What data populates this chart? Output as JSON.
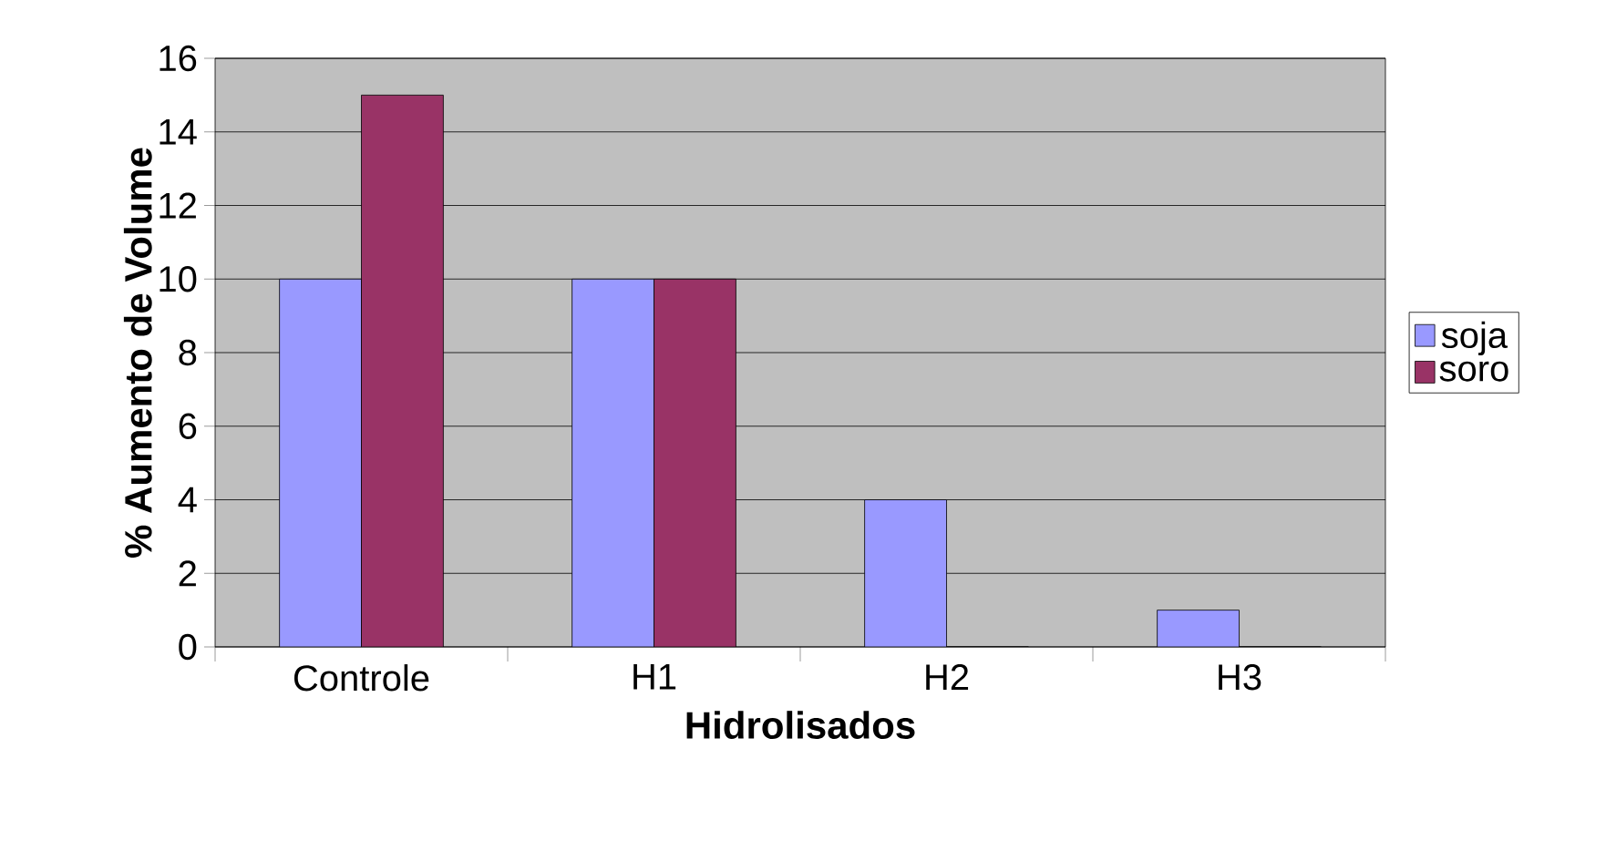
{
  "chart_data": {
    "type": "bar",
    "xlabel": "Hidrolisados",
    "ylabel": "% Aumento de Volume",
    "categories": [
      "Controle",
      "H1",
      "H2",
      "H3"
    ],
    "series": [
      {
        "name": "soja",
        "color": "#9999ff",
        "values": [
          10,
          10,
          4,
          1
        ]
      },
      {
        "name": "soro",
        "color": "#993366",
        "values": [
          15,
          10,
          0,
          0
        ]
      }
    ],
    "ylim": [
      0,
      16
    ],
    "yticks": [
      0,
      2,
      4,
      6,
      8,
      10,
      12,
      14,
      16
    ],
    "grid": "y",
    "legend": "right"
  }
}
